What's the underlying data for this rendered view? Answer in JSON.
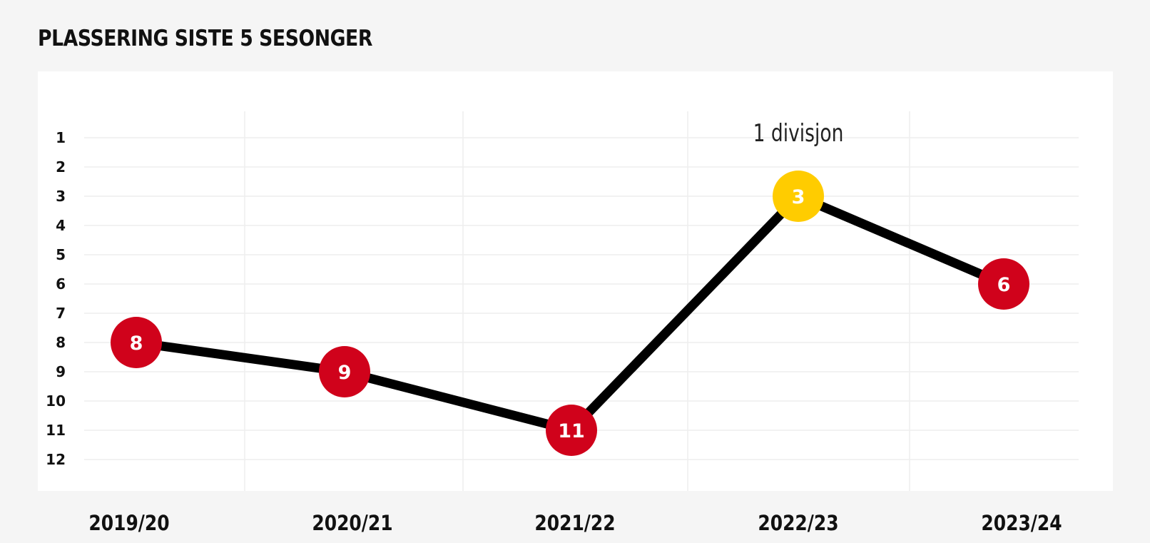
{
  "title": "PLASSERING SISTE 5 SESONGER",
  "chart_data": {
    "type": "line",
    "title": "PLASSERING SISTE 5 SESONGER",
    "xlabel": "",
    "ylabel": "",
    "categories": [
      "2019/20",
      "2020/21",
      "2021/22",
      "2022/23",
      "2023/24"
    ],
    "values": [
      8,
      9,
      11,
      3,
      6
    ],
    "ylim": [
      1,
      12
    ],
    "y_inverted": true,
    "y_ticks": [
      "1",
      "2",
      "3",
      "4",
      "5",
      "6",
      "7",
      "8",
      "9",
      "10",
      "11",
      "12"
    ],
    "grid": true,
    "legend": "none",
    "annotations": [
      {
        "category": "2022/23",
        "text": "1 divisjon"
      }
    ],
    "colors": {
      "line": "#000000",
      "marker": "#d0021b",
      "highlight_marker": "#ffcc00",
      "grid": "#eeeeee",
      "background": "#f5f5f5",
      "panel": "#ffffff"
    },
    "highlight_category": "2022/23"
  }
}
